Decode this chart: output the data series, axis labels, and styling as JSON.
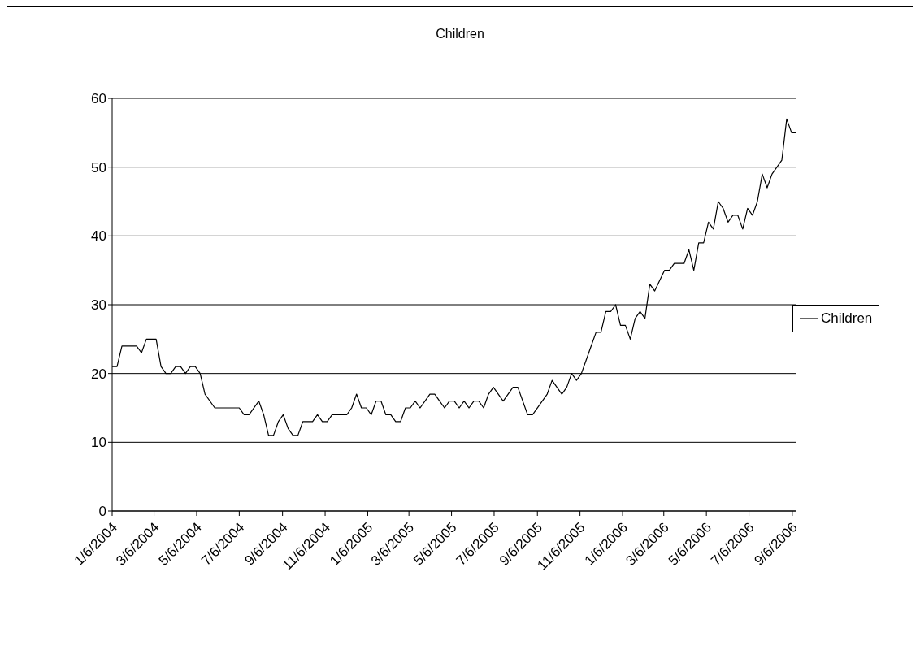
{
  "chart_data": {
    "type": "line",
    "title": "Children",
    "x": [
      "2004-01-06",
      "2004-01-13",
      "2004-01-20",
      "2004-02-10",
      "2004-02-17",
      "2004-02-24",
      "2004-03-09",
      "2004-03-16",
      "2004-03-23",
      "2004-03-30",
      "2004-04-06",
      "2004-04-13",
      "2004-04-20",
      "2004-04-27",
      "2004-05-04",
      "2004-05-11",
      "2004-05-18",
      "2004-06-01",
      "2004-07-06",
      "2004-07-13",
      "2004-07-20",
      "2004-08-03",
      "2004-08-10",
      "2004-08-17",
      "2004-08-24",
      "2004-08-31",
      "2004-09-07",
      "2004-09-14",
      "2004-09-21",
      "2004-09-28",
      "2004-10-05",
      "2004-10-19",
      "2004-10-26",
      "2004-11-02",
      "2004-11-09",
      "2004-11-16",
      "2004-12-07",
      "2004-12-14",
      "2004-12-21",
      "2004-12-28",
      "2005-01-04",
      "2005-01-11",
      "2005-01-18",
      "2005-01-25",
      "2005-02-01",
      "2005-02-08",
      "2005-02-15",
      "2005-02-22",
      "2005-03-01",
      "2005-03-08",
      "2005-03-15",
      "2005-03-22",
      "2005-03-29",
      "2005-04-05",
      "2005-04-12",
      "2005-04-19",
      "2005-04-26",
      "2005-05-03",
      "2005-05-10",
      "2005-05-17",
      "2005-05-24",
      "2005-05-31",
      "2005-06-07",
      "2005-06-14",
      "2005-06-21",
      "2005-06-28",
      "2005-07-05",
      "2005-07-19",
      "2005-08-02",
      "2005-08-09",
      "2005-08-23",
      "2005-08-30",
      "2005-09-20",
      "2005-09-27",
      "2005-10-11",
      "2005-10-18",
      "2005-10-25",
      "2005-11-01",
      "2005-11-08",
      "2005-11-15",
      "2005-11-22",
      "2005-11-29",
      "2005-12-06",
      "2005-12-13",
      "2005-12-20",
      "2005-12-27",
      "2006-01-03",
      "2006-01-10",
      "2006-01-17",
      "2006-01-24",
      "2006-01-31",
      "2006-02-07",
      "2006-02-14",
      "2006-02-21",
      "2006-03-07",
      "2006-03-14",
      "2006-03-21",
      "2006-04-04",
      "2006-04-11",
      "2006-04-18",
      "2006-04-25",
      "2006-05-02",
      "2006-05-09",
      "2006-05-16",
      "2006-05-23",
      "2006-05-30",
      "2006-06-06",
      "2006-06-13",
      "2006-06-20",
      "2006-06-27",
      "2006-07-04",
      "2006-07-11",
      "2006-07-18",
      "2006-07-25",
      "2006-08-01",
      "2006-08-08",
      "2006-08-15",
      "2006-08-22",
      "2006-08-29",
      "2006-09-05",
      "2006-09-12"
    ],
    "series": [
      {
        "name": "Children",
        "color": "#000000",
        "values": [
          21,
          21,
          24,
          24,
          23,
          25,
          25,
          21,
          20,
          20,
          21,
          21,
          20,
          21,
          21,
          20,
          17,
          15,
          15,
          14,
          14,
          16,
          14,
          11,
          11,
          13,
          14,
          12,
          11,
          11,
          13,
          13,
          14,
          13,
          13,
          14,
          14,
          15,
          17,
          15,
          15,
          14,
          16,
          16,
          14,
          14,
          13,
          13,
          15,
          15,
          16,
          15,
          16,
          17,
          17,
          16,
          15,
          16,
          16,
          15,
          16,
          15,
          16,
          16,
          15,
          17,
          18,
          16,
          18,
          18,
          14,
          14,
          17,
          19,
          17,
          18,
          20,
          19,
          20,
          22,
          24,
          26,
          26,
          29,
          29,
          30,
          27,
          27,
          25,
          28,
          29,
          28,
          33,
          32,
          35,
          35,
          36,
          36,
          38,
          35,
          39,
          39,
          42,
          41,
          45,
          44,
          42,
          43,
          43,
          41,
          44,
          43,
          45,
          49,
          47,
          49,
          50,
          51,
          57,
          55,
          55
        ]
      }
    ],
    "xlim": [
      "2004-01-06",
      "2006-09-12"
    ],
    "xticks": [
      {
        "value": "2004-01-06",
        "label": "1/6/2004"
      },
      {
        "value": "2004-03-06",
        "label": "3/6/2004"
      },
      {
        "value": "2004-05-06",
        "label": "5/6/2004"
      },
      {
        "value": "2004-07-06",
        "label": "7/6/2004"
      },
      {
        "value": "2004-09-06",
        "label": "9/6/2004"
      },
      {
        "value": "2004-11-06",
        "label": "11/6/2004"
      },
      {
        "value": "2005-01-06",
        "label": "1/6/2005"
      },
      {
        "value": "2005-03-06",
        "label": "3/6/2005"
      },
      {
        "value": "2005-05-06",
        "label": "5/6/2005"
      },
      {
        "value": "2005-07-06",
        "label": "7/6/2005"
      },
      {
        "value": "2005-09-06",
        "label": "9/6/2005"
      },
      {
        "value": "2005-11-06",
        "label": "11/6/2005"
      },
      {
        "value": "2006-01-06",
        "label": "1/6/2006"
      },
      {
        "value": "2006-03-06",
        "label": "3/6/2006"
      },
      {
        "value": "2006-05-06",
        "label": "5/6/2006"
      },
      {
        "value": "2006-07-06",
        "label": "7/6/2006"
      },
      {
        "value": "2006-09-06",
        "label": "9/6/2006"
      }
    ],
    "ylim": [
      0,
      60
    ],
    "yticks": [
      0,
      10,
      20,
      30,
      40,
      50,
      60
    ],
    "grid": "y",
    "legend": "right",
    "marker": "none",
    "line_style": "solid"
  }
}
